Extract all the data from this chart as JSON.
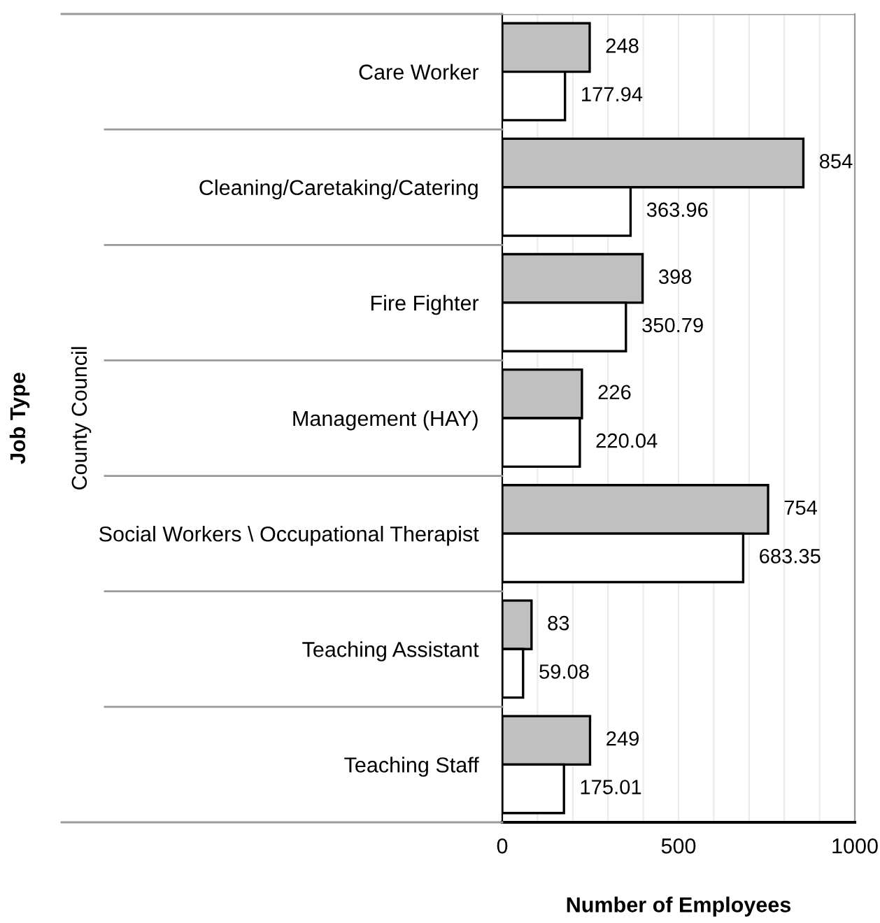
{
  "chart_data": {
    "type": "bar",
    "orientation": "horizontal",
    "xlabel": "Number of Employees",
    "ylabel": "Job Type",
    "annotations": [
      "County Council"
    ],
    "categories": [
      "Care Worker",
      "Cleaning/Caretaking/Catering",
      "Fire Fighter",
      "Management (HAY)",
      "Social Workers \\ Occupational Therapist",
      "Teaching Assistant",
      "Teaching Staff"
    ],
    "series": [
      {
        "color": "#c0c0c0",
        "values": [
          248,
          854,
          398,
          226,
          754,
          83,
          249
        ]
      },
      {
        "color": "#ffffff",
        "values": [
          177.94,
          363.96,
          350.79,
          220.04,
          683.35,
          59.08,
          175.01
        ]
      }
    ],
    "xlim": [
      0,
      1000
    ],
    "xticks": [
      0,
      {
        "value": 100,
        "label": null
      },
      {
        "value": 200,
        "label": null
      },
      {
        "value": 300,
        "label": null
      },
      {
        "value": 400,
        "label": null
      },
      500,
      {
        "value": 600,
        "label": null
      },
      {
        "value": 700,
        "label": null
      },
      {
        "value": 800,
        "label": null
      },
      {
        "value": 900,
        "label": null
      },
      1000
    ],
    "grid": "x",
    "data_labels": true,
    "legend": false
  }
}
